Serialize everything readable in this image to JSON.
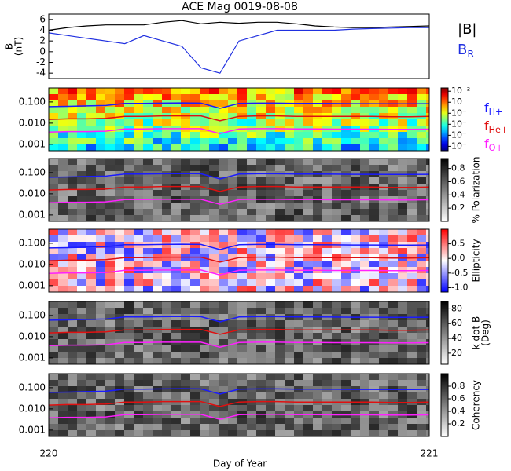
{
  "title": "ACE Mag 0019-08-08",
  "x_label": "Day of Year",
  "xlim": [
    220,
    221
  ],
  "xticks": [
    220,
    221
  ],
  "x": [
    220,
    220.05,
    220.1,
    220.15,
    220.2,
    220.25,
    220.3,
    220.35,
    220.4,
    220.45,
    220.5,
    220.55,
    220.6,
    220.65,
    220.7,
    220.75,
    220.8,
    220.85,
    220.9,
    220.95,
    221
  ],
  "line_panel": {
    "type": "line",
    "y_label": [
      "B",
      "(nT)"
    ],
    "ylim": [
      -5,
      7
    ],
    "yticks": [
      -4,
      -2,
      0,
      2,
      4,
      6
    ],
    "series": [
      {
        "name": "|B|",
        "color": "#000000",
        "values": [
          4,
          4.5,
          4.8,
          5,
          5,
          5,
          5.5,
          5.8,
          5.2,
          5.5,
          5.3,
          5.5,
          5.5,
          5.2,
          4.8,
          4.6,
          4.5,
          4.5,
          4.6,
          4.7,
          4.8
        ]
      },
      {
        "name": "B",
        "name_sub": "R",
        "color": "#1f2fe0",
        "values": [
          3.5,
          3,
          2.5,
          2,
          1.5,
          3,
          2,
          1,
          -3,
          -4,
          2,
          3,
          4,
          4,
          4,
          4,
          4.2,
          4.3,
          4.4,
          4.5,
          4.5
        ]
      }
    ]
  },
  "frequency_lines": [
    {
      "name": "f",
      "name_sub": "H+",
      "color": "#1a1aff",
      "values": [
        0.06,
        0.062,
        0.065,
        0.068,
        0.085,
        0.085,
        0.088,
        0.09,
        0.088,
        0.05,
        0.085,
        0.088,
        0.088,
        0.086,
        0.085,
        0.084,
        0.083,
        0.083,
        0.082,
        0.082,
        0.083
      ]
    },
    {
      "name": "f",
      "name_sub": "He+",
      "color": "#e01010",
      "values": [
        0.015,
        0.016,
        0.016,
        0.017,
        0.021,
        0.021,
        0.022,
        0.022,
        0.022,
        0.013,
        0.021,
        0.022,
        0.022,
        0.021,
        0.021,
        0.021,
        0.021,
        0.021,
        0.02,
        0.02,
        0.021
      ]
    },
    {
      "name": "f",
      "name_sub": "O+",
      "color": "#ff20ff",
      "values": [
        0.0038,
        0.004,
        0.004,
        0.0042,
        0.0053,
        0.0053,
        0.0055,
        0.0055,
        0.0055,
        0.0032,
        0.0053,
        0.0055,
        0.0055,
        0.0053,
        0.0053,
        0.0052,
        0.0052,
        0.0052,
        0.0051,
        0.0051,
        0.0052
      ]
    }
  ],
  "spectrogram_panels": [
    {
      "type": "spectrogram",
      "colormap": "jet",
      "ylim": [
        0.0005,
        0.46
      ],
      "yticks": [
        {
          "value": 0.1,
          "label": "0.100"
        },
        {
          "value": 0.01,
          "label": "0.010"
        },
        {
          "value": 0.001,
          "label": "0.001"
        }
      ],
      "cbar_lim": [
        -7.4,
        -1.7
      ],
      "cbar_ticks": [
        {
          "value": -2,
          "label": "10⁻²"
        },
        {
          "value": -3,
          "label": "10⁻"
        },
        {
          "value": -4,
          "label": "10⁻"
        },
        {
          "value": -5,
          "label": "10⁻"
        },
        {
          "value": -6,
          "label": "10⁻"
        },
        {
          "value": -7,
          "label": "10⁻"
        }
      ],
      "cbar_label": []
    },
    {
      "type": "spectrogram",
      "colormap": "gray",
      "ylim": [
        0.0005,
        0.46
      ],
      "yticks": [
        {
          "value": 0.1,
          "label": "0.100"
        },
        {
          "value": 0.01,
          "label": "0.010"
        },
        {
          "value": 0.001,
          "label": "0.001"
        }
      ],
      "cbar_lim": [
        0,
        0.95
      ],
      "cbar_ticks": [
        0.8,
        0.6,
        0.4,
        0.2
      ],
      "cbar_label": [
        "% Polarization"
      ]
    },
    {
      "type": "spectrogram",
      "colormap": "bwr",
      "ylim": [
        0.0005,
        0.46
      ],
      "yticks": [
        {
          "value": 0.1,
          "label": "0.100"
        },
        {
          "value": 0.01,
          "label": "0.010"
        },
        {
          "value": 0.001,
          "label": "0.001"
        }
      ],
      "cbar_lim": [
        -1.15,
        1.0
      ],
      "cbar_ticks": [
        0.5,
        {
          "value": 0,
          "label": "0.0"
        },
        -0.5,
        {
          "value": -1,
          "label": "-1.0"
        }
      ],
      "cbar_label": [
        "Ellipticity"
      ]
    },
    {
      "type": "spectrogram",
      "colormap": "gray",
      "ylim": [
        0.0005,
        0.46
      ],
      "yticks": [
        {
          "value": 0.1,
          "label": "0.100"
        },
        {
          "value": 0.01,
          "label": "0.010"
        },
        {
          "value": 0.001,
          "label": "0.001"
        }
      ],
      "cbar_lim": [
        5,
        90
      ],
      "cbar_ticks": [
        80,
        60,
        40,
        20
      ],
      "cbar_label": [
        "k dot B",
        "(Deg)"
      ]
    },
    {
      "type": "spectrogram",
      "colormap": "gray",
      "ylim": [
        0.0005,
        0.46
      ],
      "yticks": [
        {
          "value": 0.1,
          "label": "0.100"
        },
        {
          "value": 0.01,
          "label": "0.010"
        },
        {
          "value": 0.001,
          "label": "0.001"
        }
      ],
      "cbar_lim": [
        0,
        1
      ],
      "cbar_ticks": [
        0.8,
        0.6,
        0.4,
        0.2
      ],
      "cbar_label": [
        "Coherency"
      ]
    }
  ]
}
